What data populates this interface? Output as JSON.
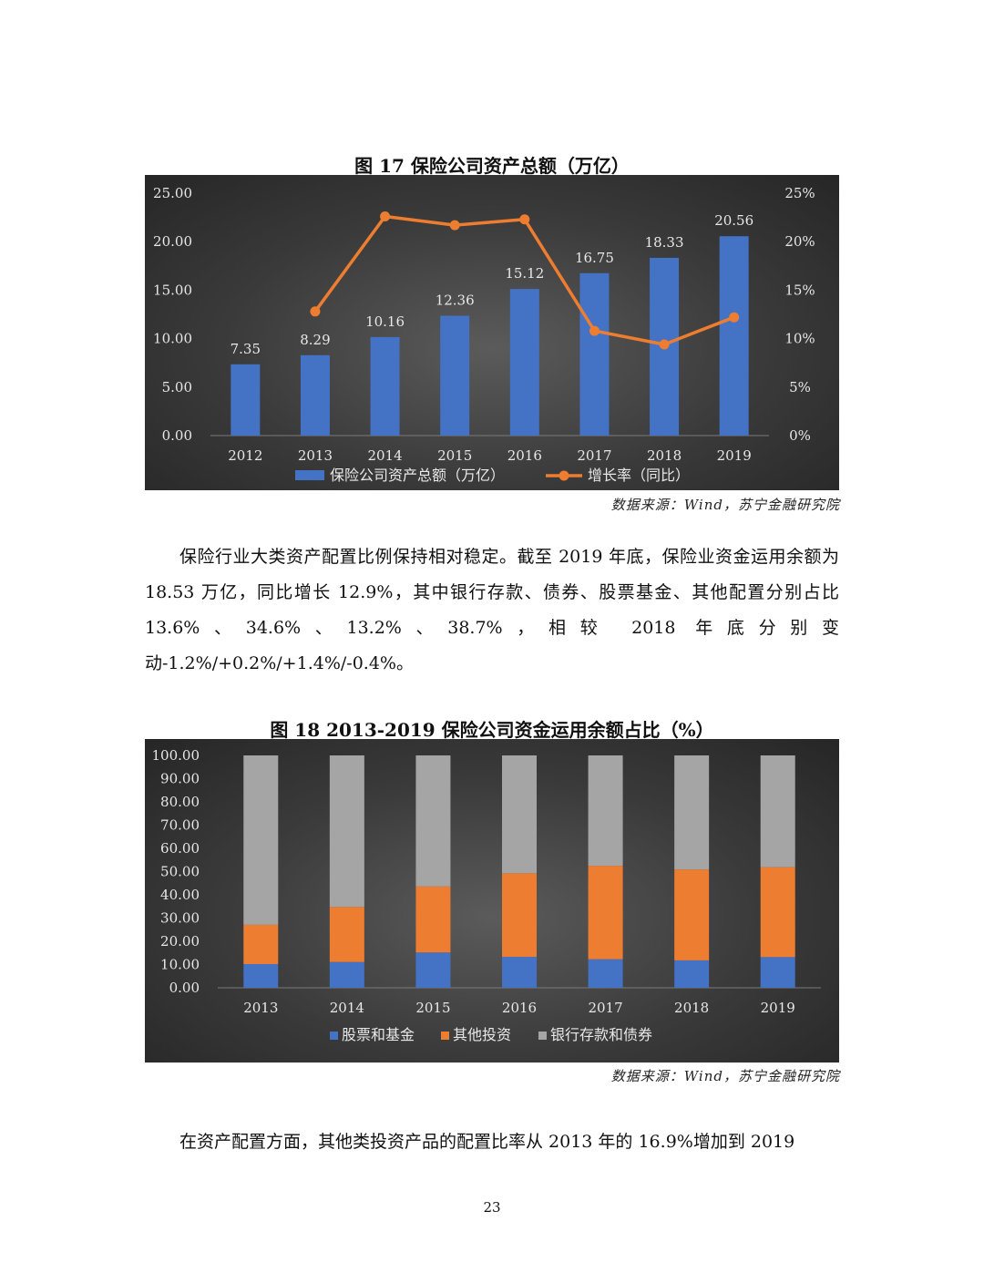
{
  "figure17": {
    "title": "图 17 保险公司资产总额（万亿）",
    "source": "数据来源：Wind，苏宁金融研究院"
  },
  "paragraph1": "保险行业大类资产配置比例保持相对稳定。截至 2019 年底，保险业资金运用余额为 18.53 万亿，同比增长 12.9%，其中银行存款、债券、股票基金、其他配置分别占比 13.6%、34.6%、13.2%、38.7%，相较 2018 年底分别变动-1.2%/+0.2%/+1.4%/-0.4%。",
  "figure18": {
    "title": "图 18 2013-2019 保险公司资金运用余额占比（%）",
    "source": "数据来源：Wind，苏宁金融研究院"
  },
  "paragraph2": "在资产配置方面，其他类投资产品的配置比率从 2013 年的 16.9%增加到 2019",
  "page_number": "23",
  "colors": {
    "bar_blue": "#4472c4",
    "line_orange": "#ed7d31",
    "bar_gray": "#a5a5a5",
    "text_light": "#e8e8e8"
  },
  "chart_data": [
    {
      "type": "bar",
      "title": "图 17 保险公司资产总额（万亿）",
      "categories": [
        "2012",
        "2013",
        "2014",
        "2015",
        "2016",
        "2017",
        "2018",
        "2019"
      ],
      "series": [
        {
          "name": "保险公司资产总额（万亿）",
          "type": "bar",
          "axis": "left",
          "values": [
            7.35,
            8.29,
            10.16,
            12.36,
            15.12,
            16.75,
            18.33,
            20.56
          ],
          "labels": [
            "7.35",
            "8.29",
            "10.16",
            "12.36",
            "15.12",
            "16.75",
            "18.33",
            "20.56"
          ]
        },
        {
          "name": "增长率（同比）",
          "type": "line",
          "axis": "right",
          "values": [
            null,
            12.8,
            22.6,
            21.7,
            22.3,
            10.8,
            9.4,
            12.2
          ]
        }
      ],
      "ylim": [
        0,
        25
      ],
      "yticks": [
        "0.00",
        "5.00",
        "10.00",
        "15.00",
        "20.00",
        "25.00"
      ],
      "y2lim": [
        0,
        25
      ],
      "y2ticks": [
        "0%",
        "5%",
        "10%",
        "15%",
        "20%",
        "25%"
      ],
      "legend": "bottom",
      "grid": false
    },
    {
      "type": "bar",
      "stacked": true,
      "title": "图 18 2013-2019 保险公司资金运用余额占比（%）",
      "categories": [
        "2013",
        "2014",
        "2015",
        "2016",
        "2017",
        "2018",
        "2019"
      ],
      "series": [
        {
          "name": "股票和基金",
          "values": [
            10.2,
            11.1,
            15.2,
            13.3,
            12.3,
            11.8,
            13.2
          ]
        },
        {
          "name": "其他投资",
          "values": [
            16.9,
            23.7,
            28.4,
            36.0,
            40.2,
            39.1,
            38.7
          ]
        },
        {
          "name": "银行存款和债券",
          "values": [
            72.9,
            65.2,
            56.4,
            50.7,
            47.5,
            49.1,
            48.1
          ]
        }
      ],
      "ylim": [
        0,
        100
      ],
      "yticks": [
        "0.00",
        "10.00",
        "20.00",
        "30.00",
        "40.00",
        "50.00",
        "60.00",
        "70.00",
        "80.00",
        "90.00",
        "100.00"
      ],
      "legend": "bottom",
      "grid": false
    }
  ]
}
